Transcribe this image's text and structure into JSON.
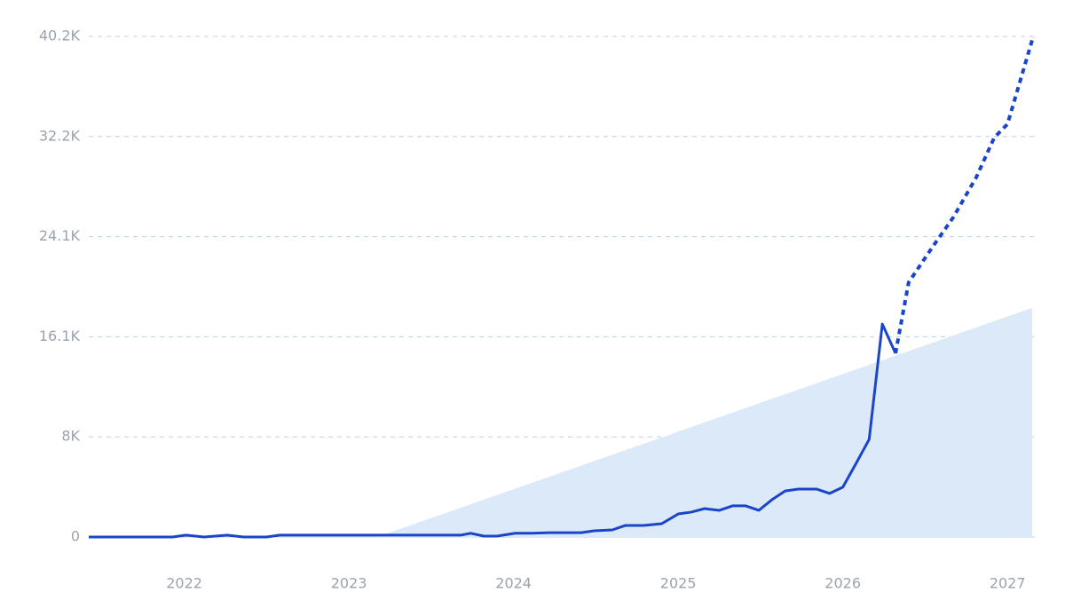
{
  "chart_data": {
    "type": "line",
    "xlim": [
      2021.42,
      2027.15
    ],
    "xticks": [
      2022,
      2023,
      2024,
      2025,
      2026,
      2027
    ],
    "ylim": [
      0,
      40200
    ],
    "yticks": [
      0,
      {
        "value": 8040,
        "label": "8K"
      },
      {
        "value": 16080,
        "label": "16.1K"
      },
      {
        "value": 24120,
        "label": "24.1K"
      },
      {
        "value": 32160,
        "label": "32.2K"
      },
      {
        "value": 40200,
        "label": "40.2K"
      }
    ],
    "grid": true,
    "series": [
      {
        "style": "area",
        "color": "#dce9f9",
        "x": [
          2023.17,
          2027.15
        ],
        "values": [
          0,
          18400
        ]
      },
      {
        "style": "solid",
        "color": "#1b45c9",
        "x": [
          2021.42,
          2021.93,
          2022.01,
          2022.12,
          2022.26,
          2022.36,
          2022.5,
          2022.58,
          2023.14,
          2023.68,
          2023.74,
          2023.82,
          2023.9,
          2024.01,
          2024.11,
          2024.22,
          2024.41,
          2024.49,
          2024.6,
          2024.68,
          2024.79,
          2024.9,
          2025.0,
          2025.08,
          2025.16,
          2025.25,
          2025.33,
          2025.41,
          2025.49,
          2025.57,
          2025.65,
          2025.73,
          2025.84,
          2025.92,
          2026.0,
          2026.08,
          2026.16,
          2026.24,
          2026.32
        ],
        "values": [
          0,
          0,
          150,
          0,
          150,
          0,
          0,
          150,
          150,
          150,
          300,
          70,
          70,
          300,
          300,
          350,
          350,
          500,
          570,
          930,
          930,
          1070,
          1850,
          2000,
          2280,
          2140,
          2500,
          2500,
          2140,
          3000,
          3700,
          3850,
          3850,
          3500,
          4000,
          5900,
          7840,
          17100,
          14750
        ]
      },
      {
        "style": "dotted",
        "color": "#1b45c9",
        "x": [
          2026.32,
          2026.4,
          2026.54,
          2026.67,
          2026.81,
          2026.92,
          2027.0,
          2027.15
        ],
        "values": [
          14750,
          20450,
          23200,
          25650,
          28870,
          32080,
          33150,
          39900
        ]
      }
    ]
  }
}
